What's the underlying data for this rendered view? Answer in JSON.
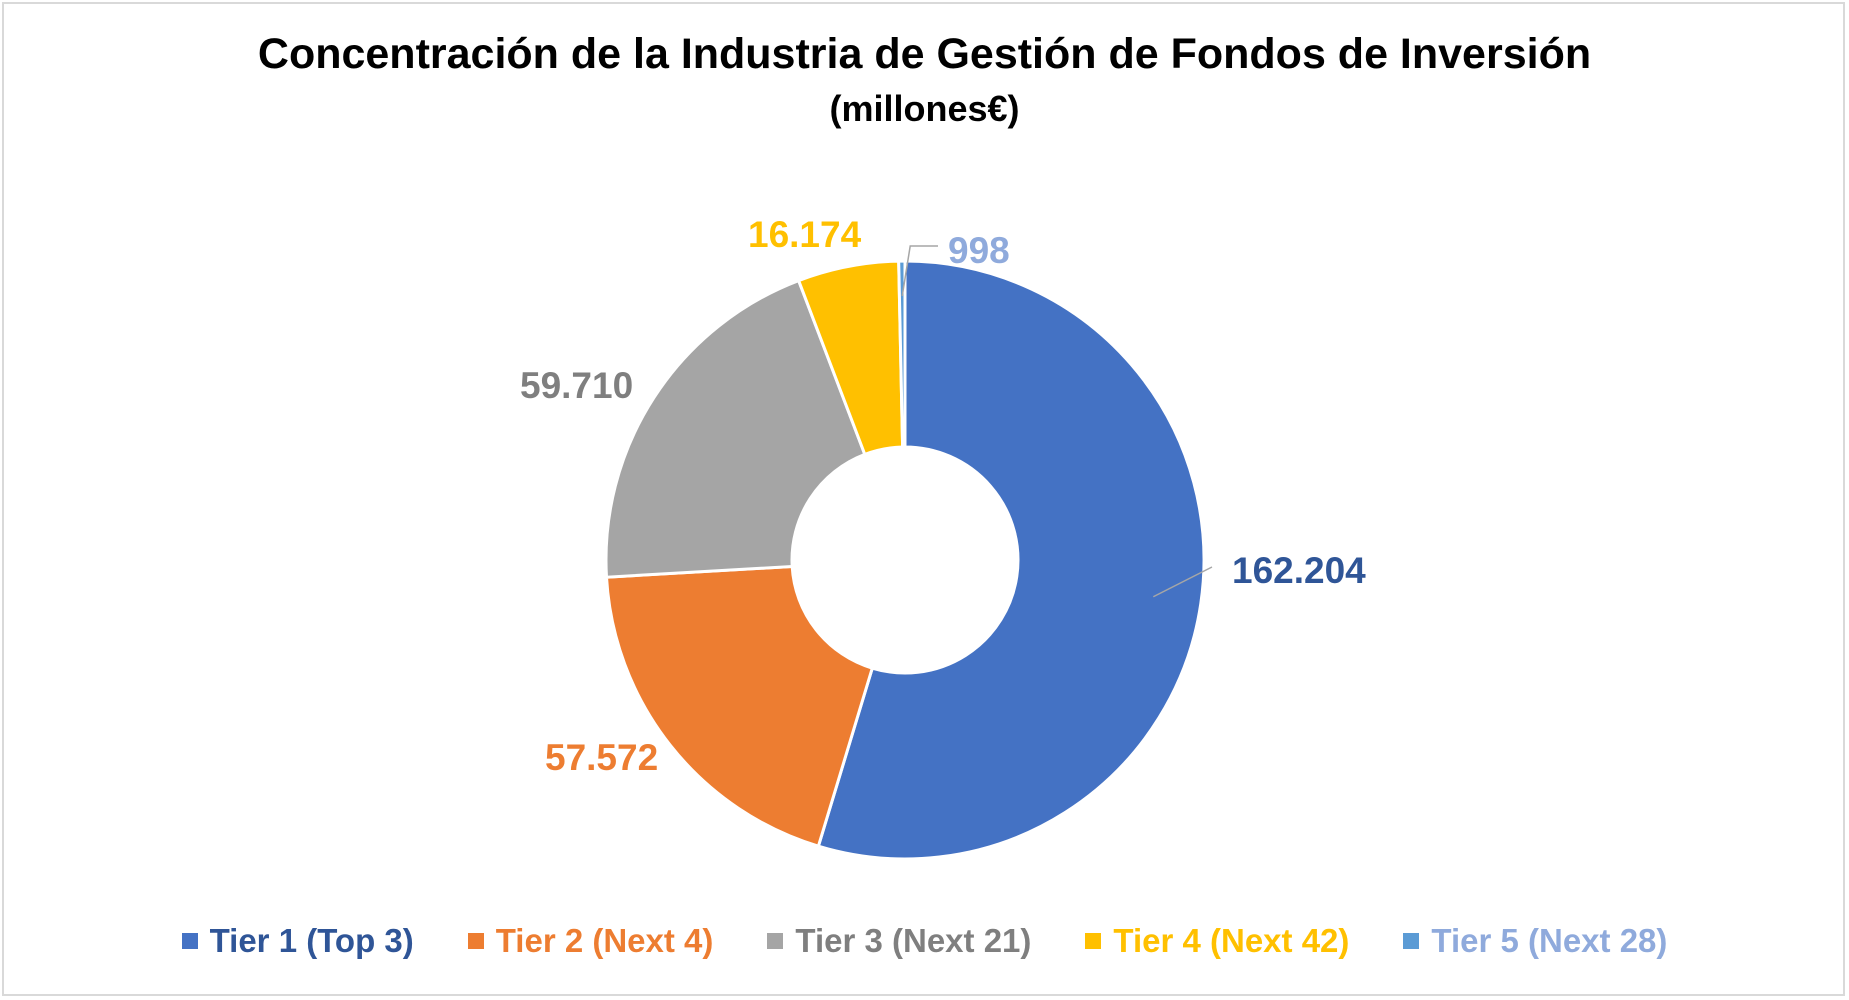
{
  "chart_data": {
    "type": "pie",
    "variant": "doughnut",
    "title": "Concentración de la Industria de Gestión de Fondos de Inversión",
    "subtitle": "(millones€)",
    "legend_position": "bottom",
    "series": [
      {
        "name": "Tier 1 (Top 3)",
        "value": 162204,
        "label": "162.204",
        "color": "#4472c4",
        "label_color": "#2f5597"
      },
      {
        "name": "Tier 2 (Next 4)",
        "value": 57572,
        "label": "57.572",
        "color": "#ed7d31",
        "label_color": "#ed7d31"
      },
      {
        "name": "Tier 3 (Next 21)",
        "value": 59710,
        "label": "59.710",
        "color": "#a5a5a5",
        "label_color": "#7f7f7f"
      },
      {
        "name": "Tier 4 (Next 42)",
        "value": 16174,
        "label": "16.174",
        "color": "#ffc000",
        "label_color": "#ffc000"
      },
      {
        "name": "Tier 5 (Next 28)",
        "value": 998,
        "label": "998",
        "color": "#5b9bd5",
        "label_color": "#8faadc"
      }
    ]
  }
}
